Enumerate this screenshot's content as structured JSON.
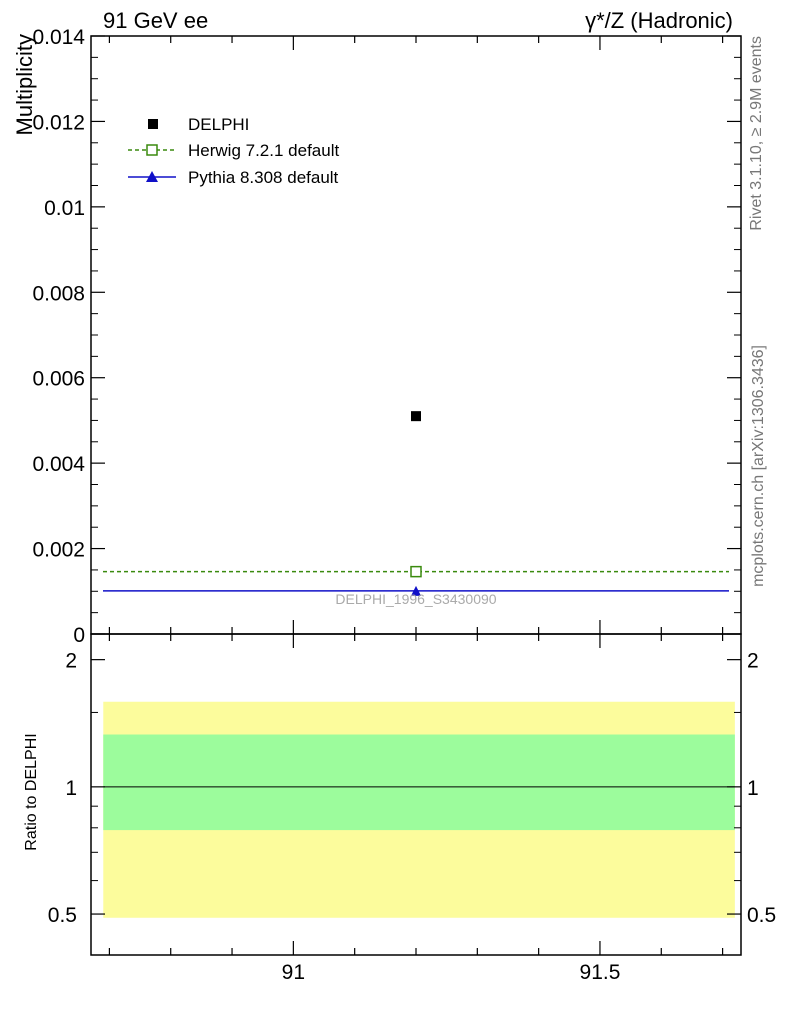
{
  "header": {
    "left_title": "91 GeV ee",
    "right_title": "γ*/Z (Hadronic)"
  },
  "side_labels": {
    "rivet": "Rivet 3.1.10, ≥ 2.9M events",
    "mcplots": "mcplots.cern.ch [arXiv:1306.3436]"
  },
  "watermark": "DELPHI_1996_S3430090",
  "legend": {
    "entries": [
      "DELPHI",
      "Herwig 7.2.1 default",
      "Pythia 8.308 default"
    ]
  },
  "colors": {
    "data": "#000000",
    "herwig": "#3a8a0e",
    "pythia": "#1010c8",
    "band_inner": "#9cfc9c",
    "band_outer": "#fcfc9c"
  },
  "chart_data": [
    {
      "type": "scatter",
      "title": "",
      "xlabel": "",
      "ylabel": "Multiplicity",
      "xlim": [
        90.67,
        91.73
      ],
      "ylim": [
        0,
        0.014
      ],
      "x_ticks": [
        91,
        91.5
      ],
      "y_ticks": [
        0,
        0.002,
        0.004,
        0.006,
        0.008,
        0.01,
        0.012,
        0.014
      ],
      "y_tick_labels": [
        "0",
        "0.002",
        "0.004",
        "0.006",
        "0.008",
        "0.01",
        "0.012",
        "0.014"
      ],
      "series": [
        {
          "name": "DELPHI",
          "style": "marker-square",
          "x": [
            91.2
          ],
          "y": [
            0.0051
          ]
        },
        {
          "name": "Herwig 7.2.1 default",
          "style": "dashed-open-square",
          "x": [
            91.2
          ],
          "y": [
            0.00146
          ]
        },
        {
          "name": "Pythia 8.308 default",
          "style": "solid-triangle",
          "x": [
            91.2
          ],
          "y": [
            0.00101
          ]
        }
      ],
      "legend_position": "top-left"
    },
    {
      "type": "area",
      "ylabel": "Ratio to DELPHI",
      "xlim": [
        90.67,
        91.73
      ],
      "ylim": [
        0.4,
        2.3
      ],
      "y_scale": "log",
      "x_ticks": [
        91,
        91.5
      ],
      "x_tick_labels": [
        "91",
        "91.5"
      ],
      "y_ticks": [
        0.5,
        1,
        2
      ],
      "y_tick_labels": [
        "0.5",
        "1",
        "2"
      ],
      "bands": [
        {
          "name": "outer",
          "x": [
            90.69,
            91.72
          ],
          "low": 0.49,
          "high": 1.59
        },
        {
          "name": "inner",
          "x": [
            90.69,
            91.72
          ],
          "low": 0.79,
          "high": 1.33
        }
      ],
      "reference_line": 1
    }
  ]
}
